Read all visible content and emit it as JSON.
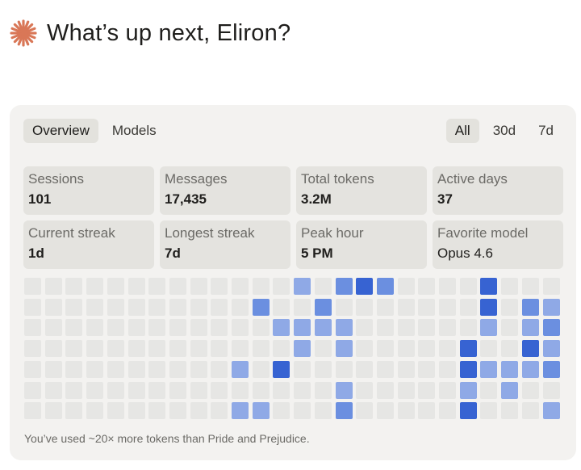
{
  "greeting": {
    "icon": "sparkle-icon",
    "accent": "#d97757",
    "text": "What’s up next, Eliron?"
  },
  "tabs": [
    {
      "label": "Overview",
      "active": true
    },
    {
      "label": "Models",
      "active": false
    }
  ],
  "ranges": [
    {
      "label": "All",
      "active": true
    },
    {
      "label": "30d",
      "active": false
    },
    {
      "label": "7d",
      "active": false
    }
  ],
  "stats": [
    {
      "label": "Sessions",
      "value": "101"
    },
    {
      "label": "Messages",
      "value": "17,435"
    },
    {
      "label": "Total tokens",
      "value": "3.2M"
    },
    {
      "label": "Active days",
      "value": "37"
    },
    {
      "label": "Current streak",
      "value": "1d"
    },
    {
      "label": "Longest streak",
      "value": "7d"
    },
    {
      "label": "Peak hour",
      "value": "5 PM"
    },
    {
      "label": "Favorite model",
      "value": "Opus 4.6"
    }
  ],
  "heatmap": {
    "columns": 26,
    "rows": 7,
    "levels": [
      "00000000000000200000000040000000000000000000000000",
      "00000000000030004000000000400000000000000000000000"
    ],
    "active_cells": [
      [
        0,
        13,
        2
      ],
      [
        0,
        15,
        3
      ],
      [
        0,
        16,
        4
      ],
      [
        0,
        17,
        3
      ],
      [
        0,
        22,
        4
      ],
      [
        1,
        11,
        3
      ],
      [
        1,
        14,
        3
      ],
      [
        1,
        22,
        4
      ],
      [
        1,
        24,
        3
      ],
      [
        1,
        25,
        2
      ],
      [
        2,
        12,
        2
      ],
      [
        2,
        13,
        2
      ],
      [
        2,
        14,
        2
      ],
      [
        2,
        15,
        2
      ],
      [
        2,
        22,
        2
      ],
      [
        2,
        24,
        2
      ],
      [
        2,
        25,
        3
      ],
      [
        3,
        13,
        2
      ],
      [
        3,
        15,
        2
      ],
      [
        3,
        21,
        4
      ],
      [
        3,
        24,
        4
      ],
      [
        3,
        25,
        2
      ],
      [
        4,
        10,
        2
      ],
      [
        4,
        12,
        4
      ],
      [
        4,
        21,
        4
      ],
      [
        4,
        22,
        2
      ],
      [
        4,
        23,
        2
      ],
      [
        4,
        24,
        2
      ],
      [
        4,
        25,
        3
      ],
      [
        5,
        15,
        2
      ],
      [
        5,
        21,
        2
      ],
      [
        5,
        23,
        2
      ],
      [
        6,
        10,
        2
      ],
      [
        6,
        11,
        2
      ],
      [
        6,
        15,
        3
      ],
      [
        6,
        21,
        4
      ],
      [
        6,
        25,
        2
      ]
    ],
    "colors": {
      "0": "#e6e6e4",
      "2": "#8fa9e6",
      "3": "#6b8fe0",
      "4": "#3763d2"
    }
  },
  "footnote": "You’ve used ~20× more tokens than Pride and Prejudice."
}
